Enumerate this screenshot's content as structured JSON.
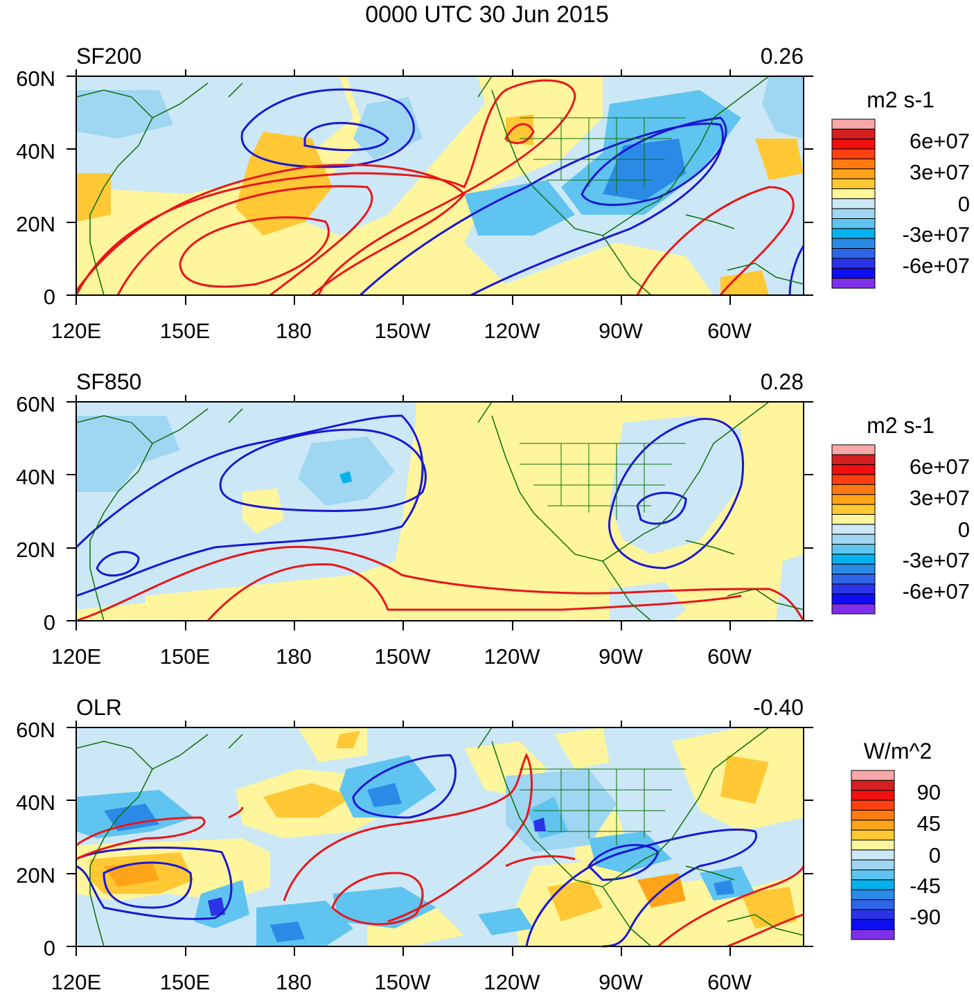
{
  "title": "0000 UTC 30 Jun 2015",
  "x_ticks": [
    "120E",
    "150E",
    "180",
    "150W",
    "120W",
    "90W",
    "60W"
  ],
  "y_ticks": [
    "60N",
    "40N",
    "20N",
    "0"
  ],
  "contour_colors": {
    "positive": "#e8161b",
    "negative": "#1a17d4",
    "coast": "#0a6e0a"
  },
  "panels": [
    {
      "name": "SF200",
      "value": "0.26",
      "units": "m2 s-1",
      "colorbar": {
        "labels": [
          "6e+07",
          "3e+07",
          "0",
          "-3e+07",
          "-6e+07"
        ],
        "colors": [
          "#f8a8a8",
          "#d42020",
          "#f01010",
          "#ff4010",
          "#ff7a10",
          "#ffa418",
          "#ffc834",
          "#fff59c",
          "#cce8f6",
          "#9fd6f2",
          "#5fc4f0",
          "#06b2ee",
          "#2b8ae6",
          "#2e64e6",
          "#2a34e6",
          "#0e0ef2",
          "#8030e8"
        ]
      }
    },
    {
      "name": "SF850",
      "value": "0.28",
      "units": "m2 s-1",
      "colorbar": {
        "labels": [
          "6e+07",
          "3e+07",
          "0",
          "-3e+07",
          "-6e+07"
        ],
        "colors": [
          "#f8a8a8",
          "#d42020",
          "#f01010",
          "#ff4010",
          "#ff7a10",
          "#ffa418",
          "#ffc834",
          "#fff59c",
          "#cce8f6",
          "#9fd6f2",
          "#5fc4f0",
          "#06b2ee",
          "#2b8ae6",
          "#2e64e6",
          "#2a34e6",
          "#0e0ef2",
          "#8030e8"
        ]
      }
    },
    {
      "name": "OLR",
      "value": "-0.40",
      "units": "W/m^2",
      "colorbar": {
        "labels": [
          "90",
          "45",
          "0",
          "-45",
          "-90"
        ],
        "colors": [
          "#f8a8a8",
          "#d42020",
          "#f01010",
          "#ff4010",
          "#ff7a10",
          "#ffa418",
          "#ffc834",
          "#fff59c",
          "#cce8f6",
          "#9fd6f2",
          "#5fc4f0",
          "#06b2ee",
          "#2b8ae6",
          "#2e64e6",
          "#2a34e6",
          "#0e0ef2",
          "#8030e8"
        ]
      }
    }
  ]
}
